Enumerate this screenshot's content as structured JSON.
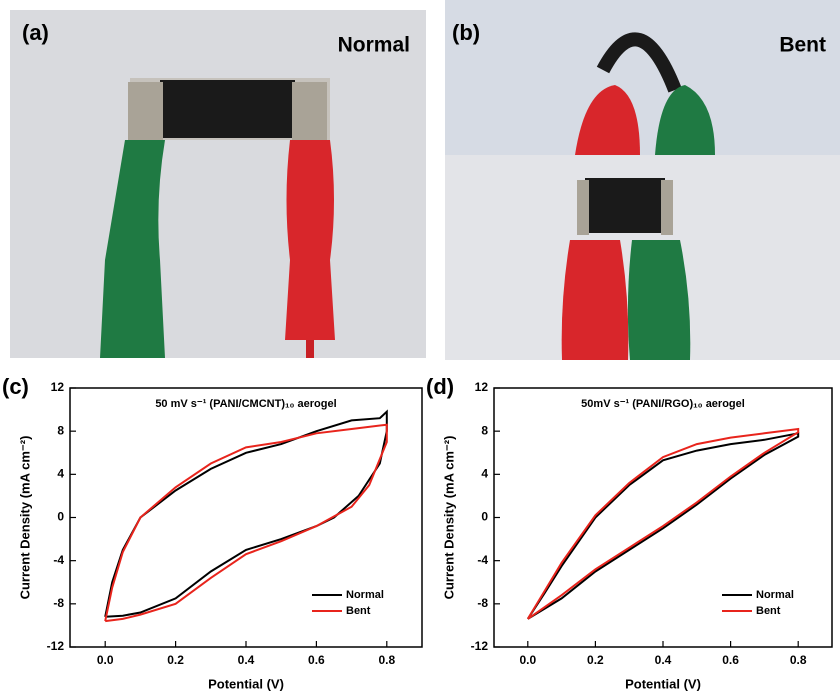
{
  "photos": {
    "a": {
      "label": "(a)",
      "caption": "Normal"
    },
    "b": {
      "label": "(b)",
      "caption": "Bent"
    }
  },
  "chart_data": [
    {
      "type": "line",
      "label": "(c)",
      "title": "50 mV s⁻¹ (PANI/CMCNT)₁₀ aerogel",
      "x_label": "Potential (V)",
      "y_label": "Current Density (mA cm⁻²)",
      "xlim": [
        -0.1,
        0.9
      ],
      "ylim": [
        -12,
        12
      ],
      "xticks": [
        {
          "value": 0,
          "label": "0.0"
        },
        0.2,
        0.4,
        0.6,
        0.8
      ],
      "yticks": [
        -12,
        -8,
        -4,
        0,
        4,
        8,
        12
      ],
      "legend": "lower right",
      "series": [
        {
          "name": "Normal",
          "color": "#000000",
          "x": [
            0,
            0.02,
            0.05,
            0.1,
            0.2,
            0.3,
            0.4,
            0.5,
            0.6,
            0.7,
            0.78,
            0.8,
            0.8,
            0.78,
            0.72,
            0.65,
            0.6,
            0.5,
            0.4,
            0.3,
            0.2,
            0.1,
            0.05,
            0
          ],
          "values": [
            -9.2,
            -6,
            -3,
            0,
            2.5,
            4.5,
            6,
            6.8,
            8,
            9,
            9.2,
            9.8,
            8,
            5,
            2,
            0,
            -0.8,
            -2,
            -3,
            -5,
            -7.5,
            -8.8,
            -9.1,
            -9.2
          ]
        },
        {
          "name": "Bent",
          "color": "#e8241c",
          "x": [
            0,
            0.02,
            0.05,
            0.1,
            0.2,
            0.3,
            0.4,
            0.5,
            0.6,
            0.7,
            0.8,
            0.8,
            0.75,
            0.7,
            0.6,
            0.5,
            0.4,
            0.3,
            0.2,
            0.1,
            0.05,
            0
          ],
          "values": [
            -9.6,
            -6.5,
            -3.2,
            0,
            2.8,
            5,
            6.5,
            7,
            7.8,
            8.2,
            8.6,
            7,
            3,
            1,
            -0.8,
            -2.2,
            -3.4,
            -5.6,
            -8,
            -9,
            -9.4,
            -9.6
          ]
        }
      ]
    },
    {
      "type": "line",
      "label": "(d)",
      "title": "50mV s⁻¹ (PANI/RGO)₁₀ aerogel",
      "x_label": "Potential (V)",
      "y_label": "Current Density (mA cm⁻²)",
      "xlim": [
        -0.1,
        0.9
      ],
      "ylim": [
        -12,
        12
      ],
      "xticks": [
        {
          "value": 0,
          "label": "0.0"
        },
        0.2,
        0.4,
        0.6,
        0.8
      ],
      "yticks": [
        -12,
        -8,
        -4,
        0,
        4,
        8,
        12
      ],
      "legend": "lower right",
      "series": [
        {
          "name": "Normal",
          "color": "#000000",
          "x": [
            0,
            0.05,
            0.1,
            0.2,
            0.3,
            0.4,
            0.5,
            0.6,
            0.7,
            0.8,
            0.8,
            0.7,
            0.6,
            0.5,
            0.4,
            0.3,
            0.2,
            0.1,
            0
          ],
          "values": [
            -9.4,
            -7,
            -4.5,
            0,
            3,
            5.3,
            6.2,
            6.8,
            7.2,
            7.8,
            7.5,
            5.8,
            3.6,
            1.2,
            -1,
            -3,
            -5,
            -7.5,
            -9.4
          ]
        },
        {
          "name": "Bent",
          "color": "#e8241c",
          "x": [
            0,
            0.05,
            0.1,
            0.2,
            0.3,
            0.4,
            0.5,
            0.6,
            0.7,
            0.8,
            0.8,
            0.7,
            0.6,
            0.5,
            0.4,
            0.3,
            0.2,
            0.1,
            0
          ],
          "values": [
            -9.4,
            -6.8,
            -4.2,
            0.2,
            3.2,
            5.6,
            6.8,
            7.4,
            7.8,
            8.2,
            7.9,
            6,
            3.8,
            1.4,
            -0.8,
            -2.8,
            -4.8,
            -7.2,
            -9.4
          ]
        }
      ]
    }
  ]
}
